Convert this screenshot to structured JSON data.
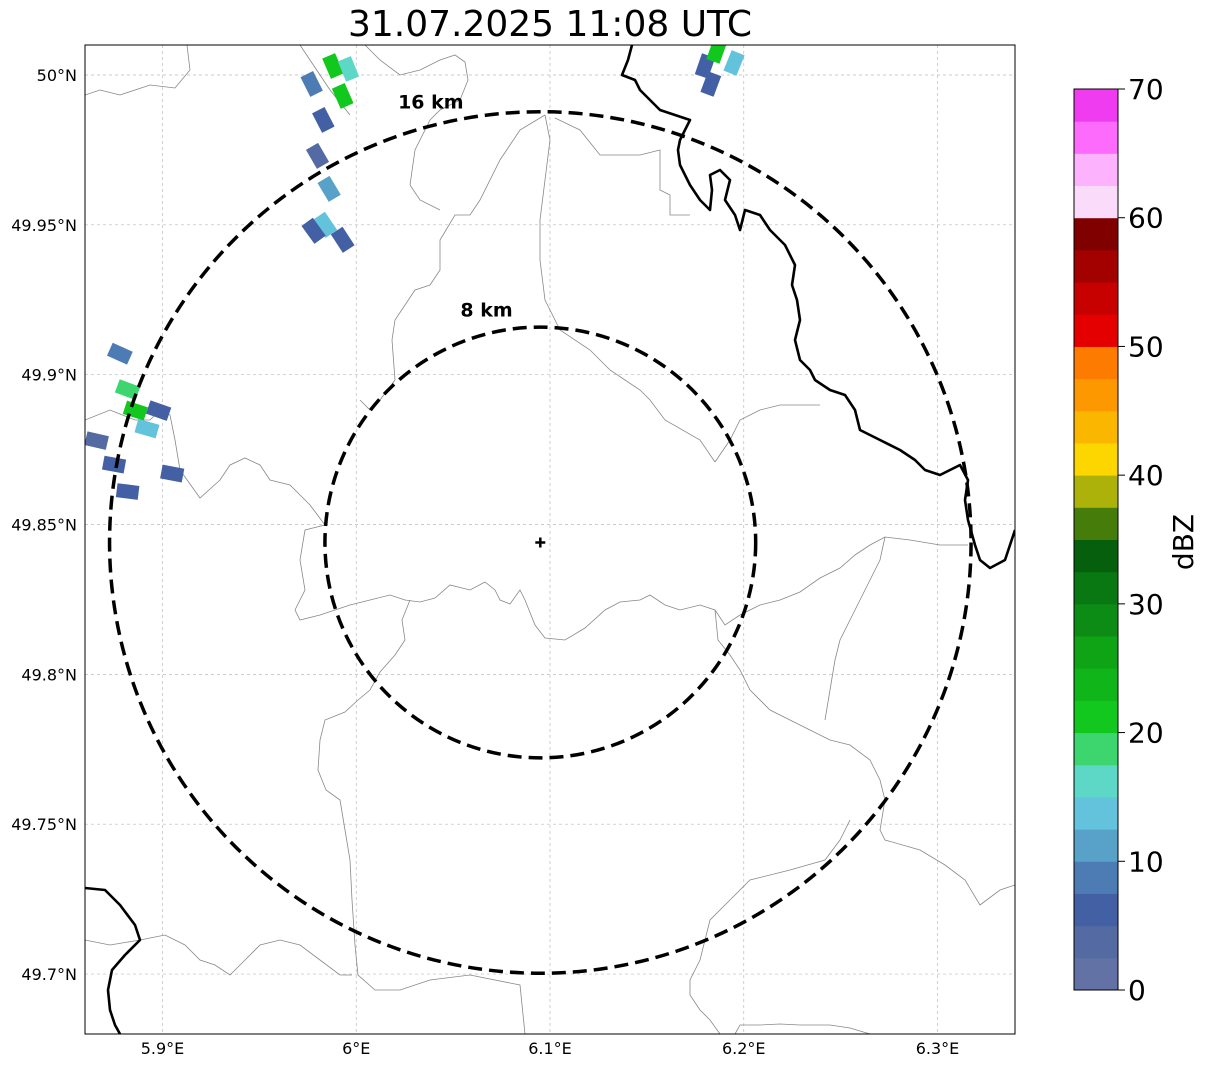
{
  "title": "31.07.2025 11:08 UTC",
  "map": {
    "extent": {
      "lon": [
        5.86,
        6.34
      ],
      "lat": [
        49.68,
        50.01
      ]
    },
    "radar_site": {
      "lon": 6.095,
      "lat": 49.844
    },
    "range_rings": [
      {
        "label": "8 km",
        "radius_km": 8
      },
      {
        "label": "16 km",
        "radius_km": 16
      }
    ],
    "gridlines": true,
    "x_ticks": [
      {
        "value": 5.9,
        "label": "5.9°E"
      },
      {
        "value": 6.0,
        "label": "6°E"
      },
      {
        "value": 6.1,
        "label": "6.1°E"
      },
      {
        "value": 6.2,
        "label": "6.2°E"
      },
      {
        "value": 6.3,
        "label": "6.3°E"
      }
    ],
    "y_ticks": [
      {
        "value": 50.0,
        "label": "50°N"
      },
      {
        "value": 49.95,
        "label": "49.95°N"
      },
      {
        "value": 49.9,
        "label": "49.9°N"
      },
      {
        "value": 49.85,
        "label": "49.85°N"
      },
      {
        "value": 49.8,
        "label": "49.8°N"
      },
      {
        "value": 49.75,
        "label": "49.75°N"
      },
      {
        "value": 49.7,
        "label": "49.7°N"
      }
    ]
  },
  "colorbar": {
    "label": "dBZ",
    "min": 0,
    "max": 70,
    "step": 2.5,
    "tick_labels": [
      "0",
      "10",
      "20",
      "30",
      "40",
      "50",
      "60",
      "70"
    ],
    "colors": [
      "#6272a4",
      "#536ba2",
      "#4360a4",
      "#4c7cb3",
      "#58a1c8",
      "#63c3dc",
      "#5dd7c6",
      "#3dd56d",
      "#12c81e",
      "#10b519",
      "#0fa416",
      "#0c8c15",
      "#097812",
      "#055f0d",
      "#467c0a",
      "#acb20a",
      "#fdd600",
      "#fbb600",
      "#fd9800",
      "#fd7c00",
      "#e50000",
      "#c70000",
      "#a30000",
      "#800000",
      "#fadcfa",
      "#fdb2fd",
      "#fd6bfd",
      "#f03cf0"
    ]
  },
  "echoes": [
    {
      "lon": 5.977,
      "lat": 49.997,
      "dbz": 8
    },
    {
      "lon": 5.983,
      "lat": 49.985,
      "dbz": 6
    },
    {
      "lon": 5.988,
      "lat": 50.003,
      "dbz": 22
    },
    {
      "lon": 5.993,
      "lat": 49.993,
      "dbz": 20
    },
    {
      "lon": 5.996,
      "lat": 50.002,
      "dbz": 16
    },
    {
      "lon": 5.98,
      "lat": 49.973,
      "dbz": 4
    },
    {
      "lon": 5.986,
      "lat": 49.962,
      "dbz": 12
    },
    {
      "lon": 5.984,
      "lat": 49.95,
      "dbz": 14
    },
    {
      "lon": 5.993,
      "lat": 49.945,
      "dbz": 6
    },
    {
      "lon": 5.978,
      "lat": 49.948,
      "dbz": 5
    },
    {
      "lon": 5.878,
      "lat": 49.907,
      "dbz": 8
    },
    {
      "lon": 5.882,
      "lat": 49.895,
      "dbz": 18
    },
    {
      "lon": 5.886,
      "lat": 49.888,
      "dbz": 22
    },
    {
      "lon": 5.892,
      "lat": 49.882,
      "dbz": 14
    },
    {
      "lon": 5.898,
      "lat": 49.888,
      "dbz": 6
    },
    {
      "lon": 5.866,
      "lat": 49.878,
      "dbz": 4
    },
    {
      "lon": 5.875,
      "lat": 49.87,
      "dbz": 5
    },
    {
      "lon": 5.882,
      "lat": 49.861,
      "dbz": 6
    },
    {
      "lon": 5.905,
      "lat": 49.867,
      "dbz": 5
    },
    {
      "lon": 6.18,
      "lat": 50.003,
      "dbz": 6
    },
    {
      "lon": 6.186,
      "lat": 50.008,
      "dbz": 20
    },
    {
      "lon": 6.195,
      "lat": 50.004,
      "dbz": 14
    },
    {
      "lon": 6.183,
      "lat": 49.997,
      "dbz": 5
    }
  ]
}
